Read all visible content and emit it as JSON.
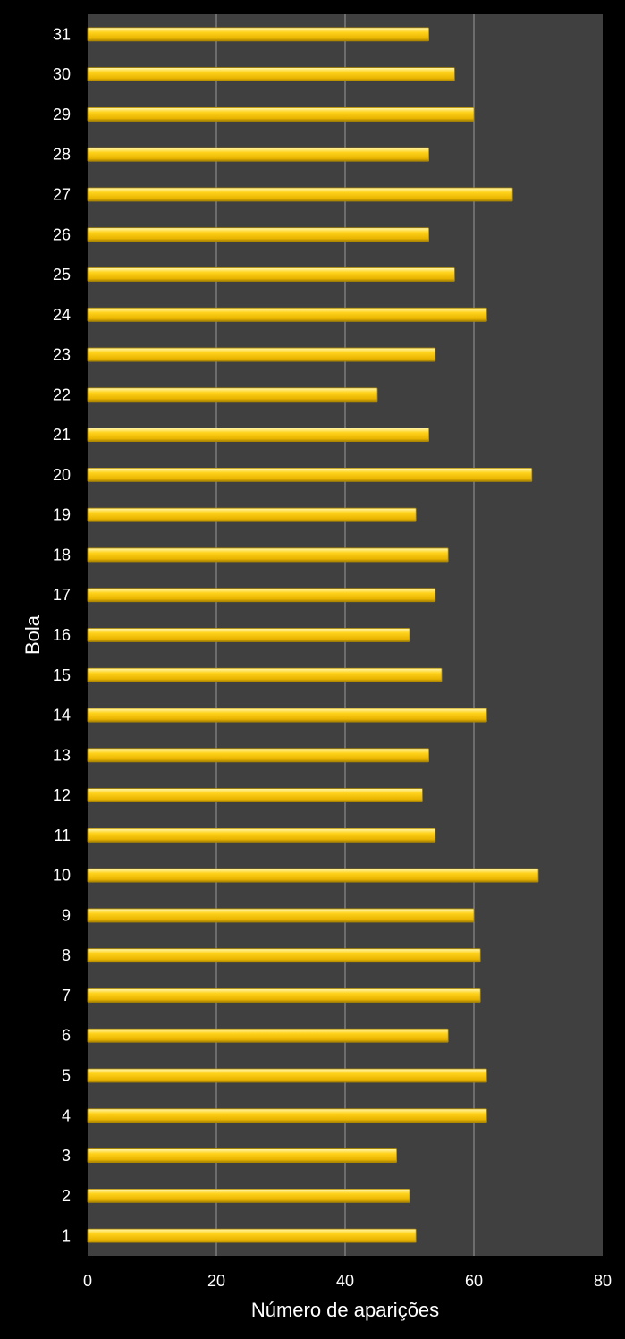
{
  "chart_data": {
    "type": "bar",
    "orientation": "horizontal",
    "title": "",
    "xlabel": "Número de aparições",
    "ylabel": "Bola",
    "xlim": [
      0,
      80
    ],
    "xticks": [
      0,
      20,
      40,
      60,
      80
    ],
    "grid": true,
    "legend": "none",
    "colors": {
      "background": "#000000",
      "plot_area": "#404040",
      "gridline": "#9a9a9a",
      "bar": "#f7c800",
      "bar_highlight": "#fff3a0",
      "bar_shadow": "#b08a00",
      "text": "#ffffff"
    },
    "categories": [
      "1",
      "2",
      "3",
      "4",
      "5",
      "6",
      "7",
      "8",
      "9",
      "10",
      "11",
      "12",
      "13",
      "14",
      "15",
      "16",
      "17",
      "18",
      "19",
      "20",
      "21",
      "22",
      "23",
      "24",
      "25",
      "26",
      "27",
      "28",
      "29",
      "30",
      "31"
    ],
    "values": [
      51,
      50,
      48,
      62,
      62,
      56,
      61,
      61,
      60,
      70,
      54,
      52,
      53,
      62,
      55,
      50,
      54,
      56,
      51,
      69,
      53,
      45,
      54,
      62,
      57,
      53,
      66,
      53,
      60,
      57,
      53
    ]
  }
}
